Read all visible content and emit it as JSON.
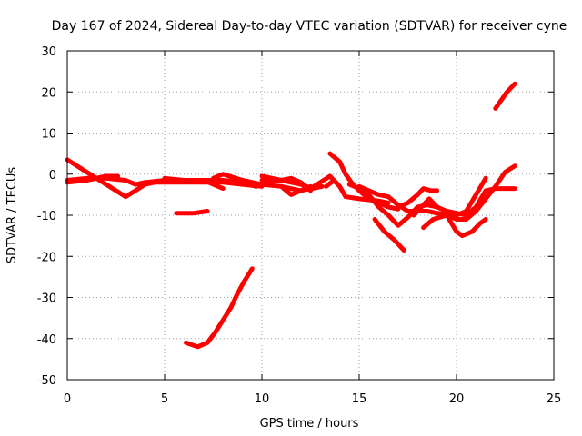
{
  "chart_data": {
    "type": "line",
    "title": "Day 167 of 2024, Sidereal Day-to-day VTEC variation (SDTVAR) for receiver cyne",
    "xlabel": "GPS time / hours",
    "ylabel": "SDTVAR / TECUs",
    "xlim": [
      0,
      25
    ],
    "ylim": [
      -50,
      30
    ],
    "xticks": [
      0,
      5,
      10,
      15,
      20,
      25
    ],
    "yticks": [
      -50,
      -40,
      -30,
      -20,
      -10,
      0,
      10,
      20,
      30
    ],
    "grid": true,
    "series_color": "#ff0000",
    "series": [
      {
        "name": "s1",
        "points": [
          [
            0,
            3.5
          ],
          [
            0.5,
            2
          ],
          [
            1,
            0.5
          ],
          [
            1.5,
            -1
          ],
          [
            2,
            -2.5
          ],
          [
            2.5,
            -4
          ],
          [
            3,
            -5.5
          ],
          [
            3.5,
            -4
          ],
          [
            4,
            -2.5
          ],
          [
            4.5,
            -2
          ],
          [
            5,
            -2
          ],
          [
            6,
            -2
          ],
          [
            7,
            -2
          ],
          [
            8,
            -2
          ],
          [
            9,
            -2.5
          ],
          [
            10,
            -3
          ]
        ]
      },
      {
        "name": "s2",
        "points": [
          [
            0,
            -1.5
          ],
          [
            1,
            -1
          ],
          [
            2,
            -1
          ],
          [
            3,
            -1.5
          ],
          [
            3.5,
            -2.5
          ],
          [
            4,
            -2
          ],
          [
            5,
            -1.5
          ],
          [
            6,
            -1.5
          ],
          [
            7,
            -1.5
          ],
          [
            8,
            -1.5
          ],
          [
            9,
            -2
          ],
          [
            9.7,
            -3
          ]
        ]
      },
      {
        "name": "s3",
        "points": [
          [
            0,
            -2
          ],
          [
            1,
            -1.5
          ],
          [
            2,
            -0.5
          ],
          [
            2.6,
            -0.5
          ]
        ]
      },
      {
        "name": "s4",
        "points": [
          [
            5,
            -1
          ],
          [
            6,
            -1.5
          ],
          [
            7,
            -1.5
          ],
          [
            8,
            -3.5
          ]
        ]
      },
      {
        "name": "s5",
        "points": [
          [
            7.5,
            -1
          ],
          [
            8,
            0
          ],
          [
            9,
            -1.5
          ],
          [
            10,
            -2.5
          ],
          [
            11,
            -3
          ],
          [
            12,
            -4
          ],
          [
            12.5,
            -3.5
          ],
          [
            13,
            -2
          ],
          [
            13.5,
            -0.5
          ],
          [
            13.8,
            -2
          ]
        ]
      },
      {
        "name": "s6",
        "points": [
          [
            10,
            -0.5
          ],
          [
            11,
            -1.5
          ],
          [
            11.5,
            -1
          ],
          [
            12,
            -2
          ],
          [
            12.5,
            -4
          ]
        ]
      },
      {
        "name": "s7",
        "points": [
          [
            10,
            -1.5
          ],
          [
            11,
            -1.5
          ],
          [
            12,
            -2.5
          ],
          [
            12.6,
            -3.5
          ],
          [
            13.1,
            -3
          ]
        ]
      },
      {
        "name": "s8",
        "points": [
          [
            11,
            -3
          ],
          [
            11.5,
            -5
          ],
          [
            12,
            -4
          ],
          [
            12.5,
            -3
          ]
        ]
      },
      {
        "name": "s9",
        "points": [
          [
            13.5,
            5
          ],
          [
            14,
            3
          ],
          [
            14.3,
            0
          ],
          [
            14.6,
            -2
          ],
          [
            15,
            -4
          ],
          [
            15.5,
            -6
          ],
          [
            16,
            -7
          ],
          [
            16.5,
            -8
          ],
          [
            17,
            -8.5
          ]
        ]
      },
      {
        "name": "s10",
        "points": [
          [
            13.3,
            -3
          ],
          [
            13.7,
            -1.5
          ],
          [
            14,
            -3
          ],
          [
            14.3,
            -5.5
          ],
          [
            15,
            -6
          ],
          [
            16,
            -6.5
          ],
          [
            16.5,
            -7
          ]
        ]
      },
      {
        "name": "s11",
        "points": [
          [
            14.5,
            -2.5
          ],
          [
            15,
            -3.5
          ],
          [
            15.5,
            -5
          ],
          [
            16,
            -8
          ],
          [
            16.5,
            -10
          ],
          [
            17,
            -12.5
          ],
          [
            17.5,
            -10.5
          ],
          [
            18,
            -8
          ],
          [
            18.5,
            -7.5
          ],
          [
            19,
            -8
          ],
          [
            19.5,
            -9
          ],
          [
            20,
            -9.5
          ],
          [
            20.5,
            -10
          ],
          [
            21,
            -8
          ],
          [
            21.5,
            -4
          ],
          [
            22,
            -3.5
          ],
          [
            23,
            -3.5
          ]
        ]
      },
      {
        "name": "s12",
        "points": [
          [
            15,
            -3
          ],
          [
            15.5,
            -4
          ],
          [
            16,
            -5
          ],
          [
            16.5,
            -5.5
          ],
          [
            17,
            -7.5
          ],
          [
            17.5,
            -9
          ],
          [
            18,
            -9
          ],
          [
            18.5,
            -9
          ],
          [
            19,
            -9.5
          ],
          [
            20,
            -10
          ],
          [
            20.5,
            -9
          ],
          [
            21,
            -5
          ],
          [
            21.5,
            -1
          ]
        ]
      },
      {
        "name": "s13",
        "points": [
          [
            15.8,
            -11
          ],
          [
            16.3,
            -14
          ],
          [
            16.8,
            -16
          ],
          [
            17.3,
            -18.5
          ]
        ]
      },
      {
        "name": "s14",
        "points": [
          [
            17,
            -8
          ],
          [
            17.5,
            -7
          ],
          [
            18,
            -5
          ],
          [
            18.3,
            -3.5
          ],
          [
            18.7,
            -4
          ],
          [
            19,
            -4
          ]
        ]
      },
      {
        "name": "s15",
        "points": [
          [
            17.8,
            -10
          ],
          [
            18.2,
            -8
          ],
          [
            18.6,
            -6
          ],
          [
            19,
            -8
          ]
        ]
      },
      {
        "name": "s16",
        "points": [
          [
            18.3,
            -13
          ],
          [
            18.8,
            -11
          ],
          [
            19.5,
            -10
          ],
          [
            20,
            -14
          ],
          [
            20.3,
            -15
          ],
          [
            20.8,
            -14
          ],
          [
            21.2,
            -12
          ],
          [
            21.5,
            -11
          ]
        ]
      },
      {
        "name": "s17",
        "points": [
          [
            19.5,
            -10
          ],
          [
            20,
            -11
          ],
          [
            20.5,
            -11
          ],
          [
            21,
            -9
          ],
          [
            21.5,
            -6
          ],
          [
            22,
            -3
          ],
          [
            22.5,
            0.5
          ],
          [
            23,
            2
          ]
        ]
      },
      {
        "name": "s18",
        "points": [
          [
            22,
            16
          ],
          [
            22.3,
            18
          ],
          [
            22.6,
            20
          ],
          [
            23,
            22
          ]
        ]
      },
      {
        "name": "s19",
        "points": [
          [
            5.6,
            -9.5
          ],
          [
            6.5,
            -9.5
          ],
          [
            7.2,
            -9
          ]
        ]
      },
      {
        "name": "s20",
        "points": [
          [
            6.1,
            -41
          ],
          [
            6.7,
            -42
          ],
          [
            7.2,
            -41
          ],
          [
            7.6,
            -38.5
          ],
          [
            8,
            -35.5
          ],
          [
            8.4,
            -32.5
          ],
          [
            8.7,
            -29.5
          ],
          [
            9.1,
            -26
          ],
          [
            9.5,
            -23
          ]
        ]
      }
    ]
  }
}
